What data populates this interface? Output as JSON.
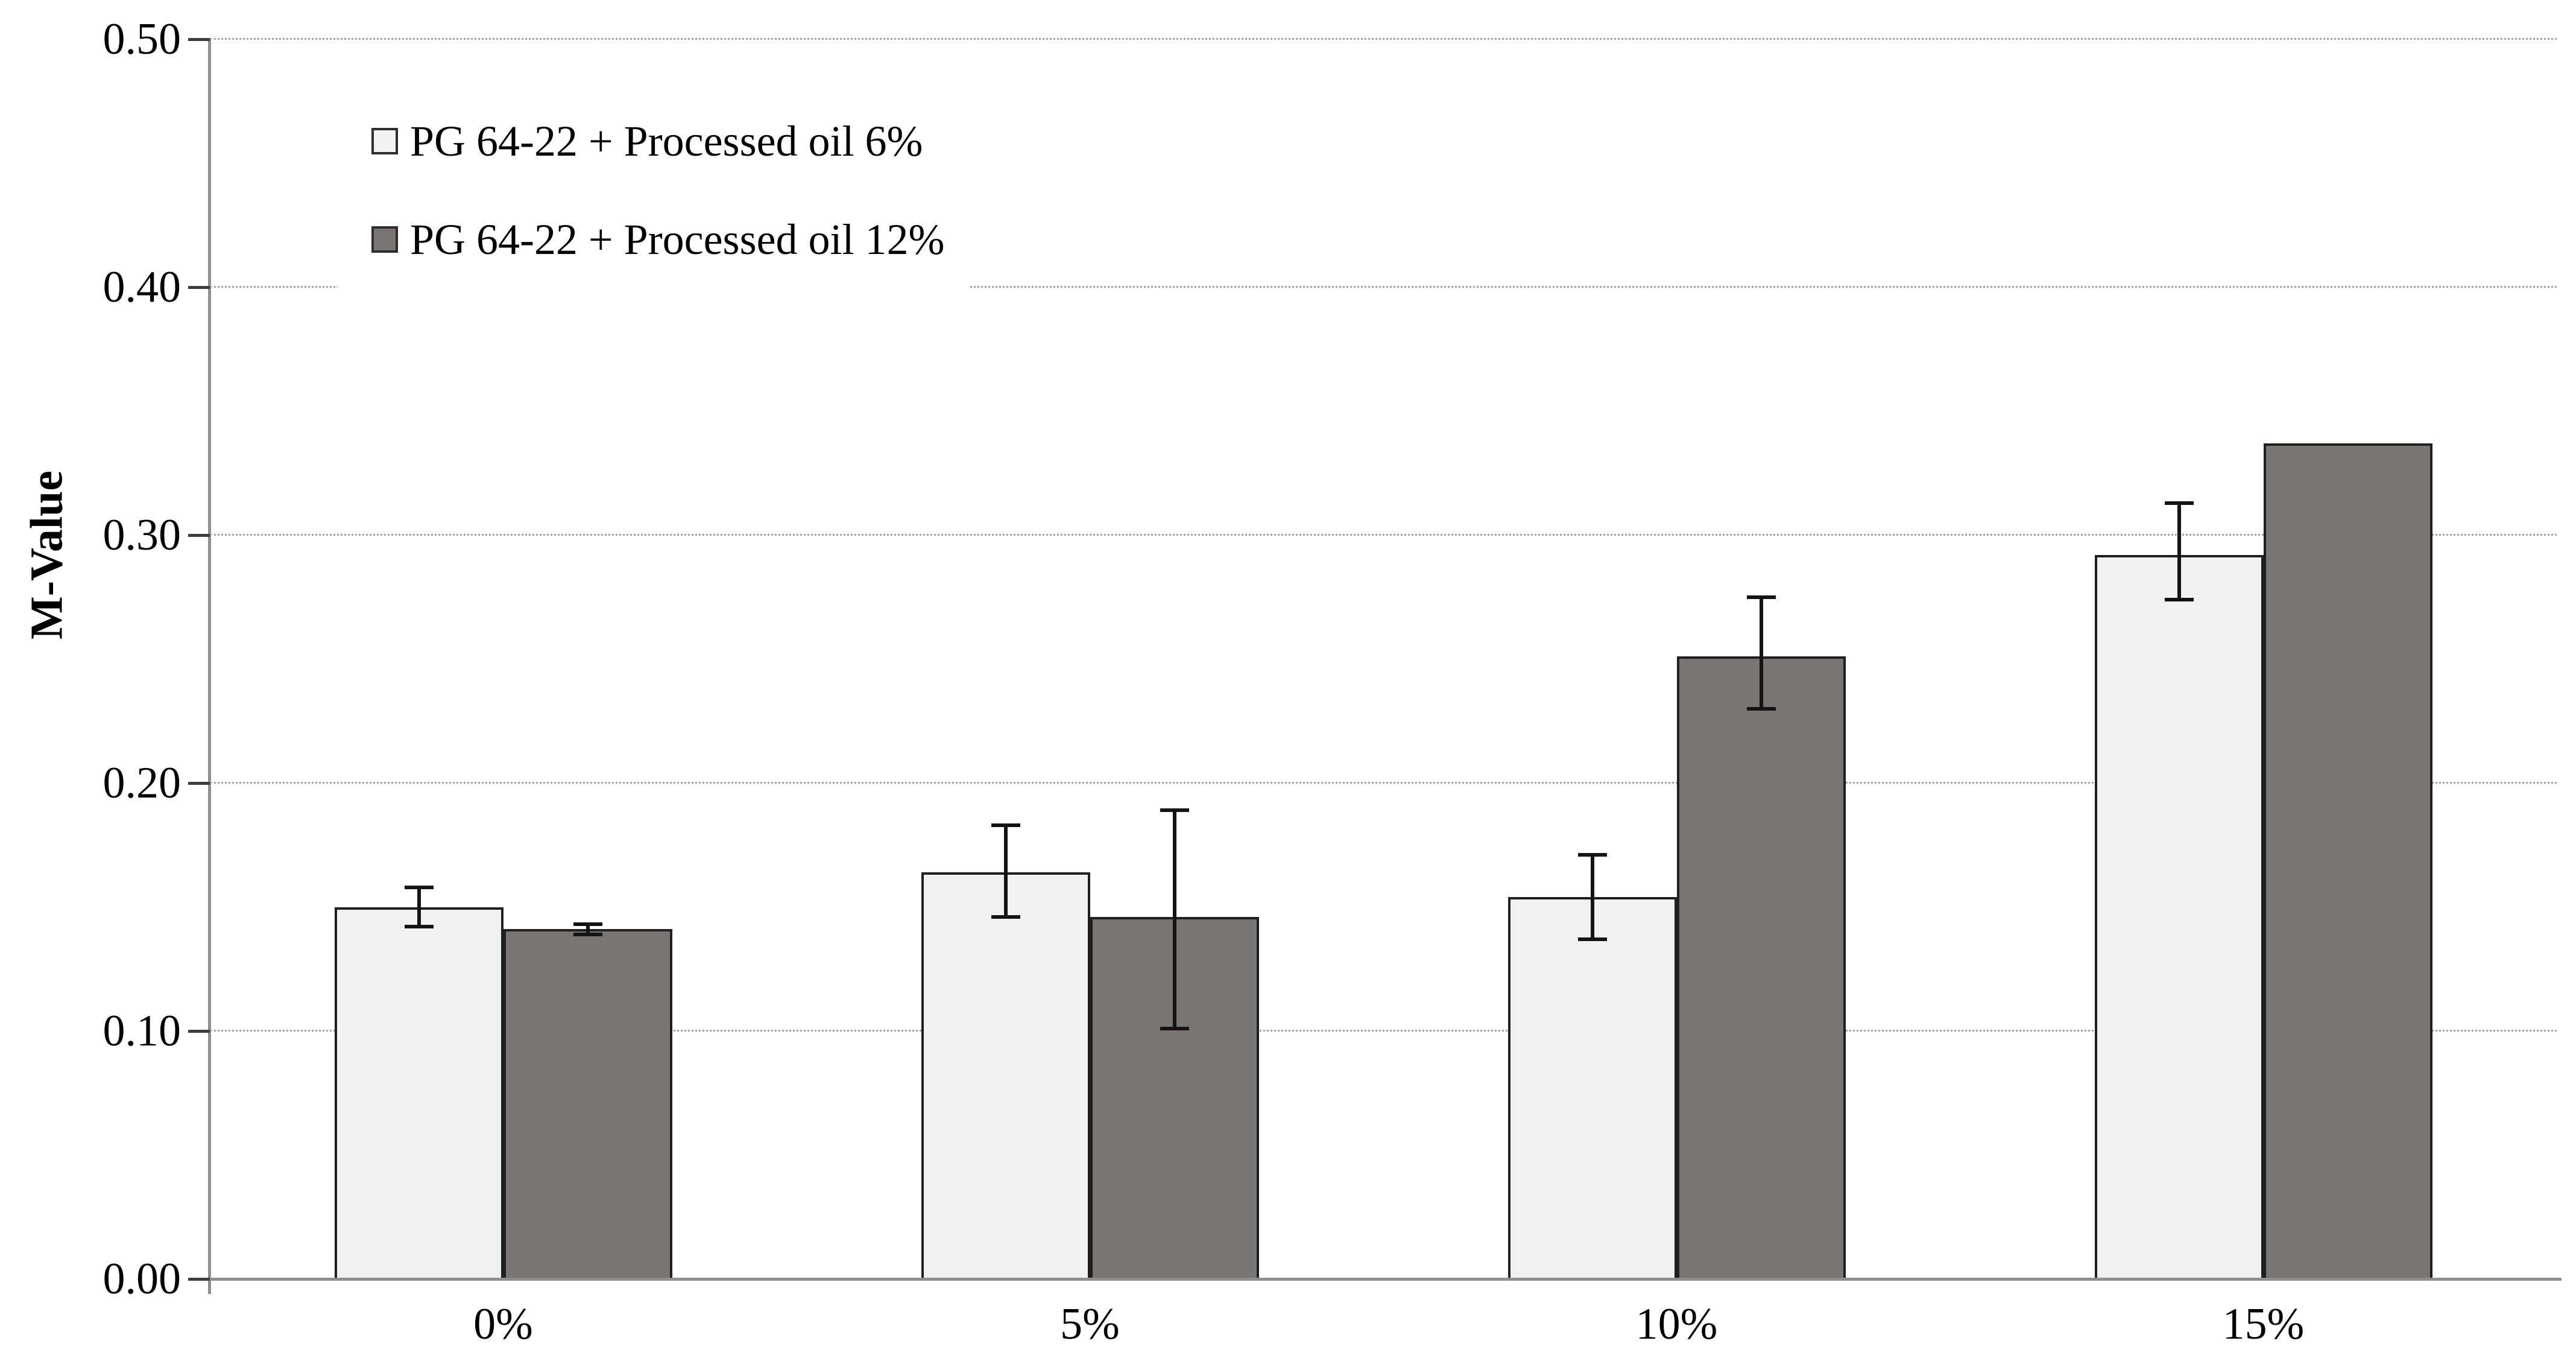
{
  "page": {
    "background": "#ffffff"
  },
  "chart_data": {
    "type": "bar",
    "title": "",
    "xlabel": "",
    "ylabel": "M-Value",
    "categories": [
      "0%",
      "5%",
      "10%",
      "15%"
    ],
    "ylim": [
      0.0,
      0.5
    ],
    "ytick_step": 0.1,
    "ytick_labels": [
      "0.00",
      "0.10",
      "0.20",
      "0.30",
      "0.40",
      "0.50"
    ],
    "grid": "horizontal-dotted",
    "legend": {
      "position": "top-left-inside",
      "entries": [
        "PG 64-22 + Processed oil 6%",
        "PG 64-22 + Processed oil 12%"
      ]
    },
    "series": [
      {
        "name": "PG 64-22 + Processed oil 6%",
        "fill": "#f1f1ef",
        "border": "#1f1f1f",
        "values": [
          0.15,
          0.164,
          0.154,
          0.292
        ],
        "err_up": [
          0.008,
          0.019,
          0.017,
          0.021
        ],
        "err_down": [
          0.008,
          0.018,
          0.017,
          0.018
        ]
      },
      {
        "name": "PG 64-22 + Processed oil 12%",
        "fill": "#7a7572",
        "border": "#1f1f1f",
        "values": [
          0.141,
          0.146,
          0.251,
          0.337
        ],
        "err_up": [
          0.002,
          0.043,
          0.024,
          null
        ],
        "err_down": [
          0.002,
          0.045,
          0.021,
          null
        ]
      }
    ],
    "axis_colors": {
      "axis_line": "#8f8f8f",
      "tick": "#3d3d3d",
      "gridline": "#a3a3a3",
      "text": "#000000"
    }
  }
}
